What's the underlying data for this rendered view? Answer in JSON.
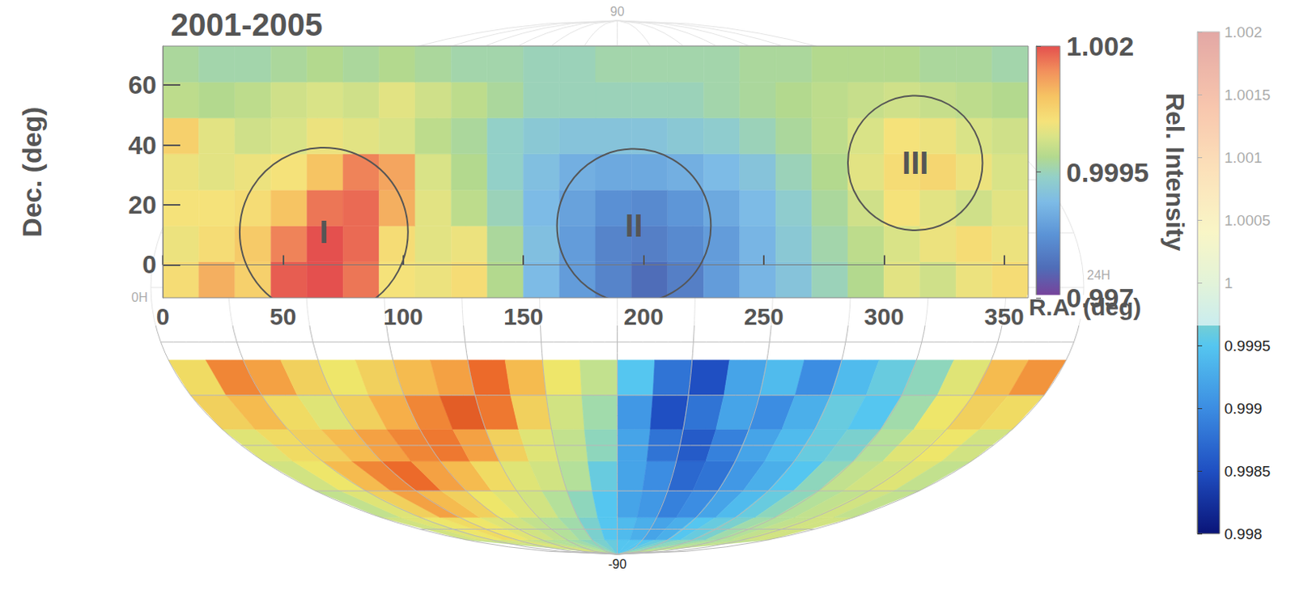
{
  "chart_data": [
    {
      "type": "heatmap",
      "title": "2001-2005",
      "x_label": "R.A. (deg)",
      "y_label": "Dec. (deg)",
      "xlim": [
        0,
        360
      ],
      "xticks": [
        0,
        50,
        100,
        150,
        200,
        250,
        300,
        350
      ],
      "ylim": [
        -11,
        73
      ],
      "yticks": [
        0,
        20,
        40,
        60
      ],
      "grid": false,
      "ra_edges": [
        0,
        15,
        30,
        45,
        60,
        75,
        90,
        105,
        120,
        135,
        150,
        165,
        180,
        195,
        210,
        225,
        240,
        255,
        270,
        285,
        300,
        315,
        330,
        345,
        360
      ],
      "dec_edges": [
        -11,
        1,
        13,
        25,
        37,
        49,
        61,
        73
      ],
      "cells": [
        [
          1.0006,
          1.0012,
          1.0008,
          1.0019,
          1.002,
          1.0017,
          1.0005,
          1.0004,
          1.0006,
          0.9998,
          0.9989,
          0.9984,
          0.998,
          0.9976,
          0.9979,
          0.9984,
          0.9988,
          0.9991,
          0.9995,
          0.9998,
          1.0003,
          1.0001,
          1.0004,
          1.0006
        ],
        [
          1.0004,
          1.0006,
          1.0009,
          1.0016,
          1.002,
          1.0018,
          1.0006,
          1.0003,
          1.0004,
          0.9997,
          0.999,
          0.9984,
          0.998,
          0.9979,
          0.9981,
          0.9984,
          0.9988,
          0.9992,
          0.9996,
          0.9999,
          1.0002,
          1.0004,
          1.0006,
          1.0004
        ],
        [
          1.0005,
          1.0005,
          1.0006,
          1.001,
          1.0017,
          1.0018,
          1.0012,
          1.0003,
          0.9999,
          0.9995,
          0.9989,
          0.9985,
          0.9982,
          0.9981,
          0.9983,
          0.9986,
          0.9989,
          0.9993,
          0.9997,
          1.0001,
          1.0005,
          1.0003,
          1.0001,
          1.0003
        ],
        [
          1.0004,
          1.0003,
          1.0004,
          1.0005,
          1.001,
          1.0016,
          1.0013,
          1.0002,
          0.9998,
          0.9994,
          0.999,
          0.9987,
          0.9986,
          0.9986,
          0.9987,
          0.9989,
          0.9991,
          0.9995,
          0.9998,
          1.0003,
          1.0006,
          1.0007,
          1.0004,
          1.0002
        ],
        [
          1.0008,
          1.0003,
          1.0001,
          1.0002,
          1.0004,
          1.0003,
          1.0002,
          0.9999,
          0.9997,
          0.9994,
          0.9992,
          0.9991,
          0.9991,
          0.9991,
          0.9992,
          0.9993,
          0.9995,
          0.9997,
          0.9999,
          1.0002,
          1.0005,
          1.0004,
          1.0002,
          1.0001
        ],
        [
          0.9999,
          0.9998,
          0.9999,
          1.0001,
          1.0002,
          1.0001,
          1.0003,
          1.0001,
          0.9999,
          0.9997,
          0.9995,
          0.9995,
          0.9995,
          0.9995,
          0.9995,
          0.9996,
          0.9997,
          0.9998,
          0.9999,
          1.0,
          1.0001,
          1.0,
          0.9999,
          0.9998
        ],
        [
          0.9997,
          0.9996,
          0.9996,
          0.9997,
          0.9998,
          0.9997,
          0.9998,
          0.9997,
          0.9996,
          0.9996,
          0.9995,
          0.9995,
          0.9996,
          0.9996,
          0.9996,
          0.9996,
          0.9997,
          0.9997,
          0.9998,
          0.9998,
          0.9998,
          0.9997,
          0.9997,
          0.9996
        ]
      ],
      "colorbar": {
        "label": "Rel. Intensity",
        "range": [
          0.997,
          1.002
        ],
        "ticks": [
          0.997,
          0.9995,
          1.002
        ]
      },
      "regions": [
        {
          "label": "I",
          "ra": 67,
          "dec": 11,
          "radius": 35
        },
        {
          "label": "II",
          "ra": 196,
          "dec": 13,
          "radius": 32
        },
        {
          "label": "III",
          "ra": 313,
          "dec": 34,
          "radius": 28
        }
      ]
    },
    {
      "type": "skymap",
      "grid": true,
      "ra_edges": [
        0,
        15,
        30,
        45,
        60,
        75,
        90,
        105,
        120,
        135,
        150,
        165,
        180,
        195,
        210,
        225,
        240,
        255,
        270,
        285,
        300,
        315,
        330,
        345,
        360
      ],
      "dec_edges": [
        -90,
        -80,
        -70,
        -60,
        -50,
        -40,
        -30,
        -20
      ],
      "cells": [
        [
          1.0001,
          1.0002,
          1.0002,
          1.0003,
          1.0002,
          1.0001,
          1.0,
          1.0,
          0.9999,
          0.9998,
          0.9997,
          0.9996,
          0.9995,
          0.9995,
          0.9995,
          0.9996,
          0.9997,
          0.9998,
          0.9998,
          0.9999,
          1.0,
          1.0,
          1.0001,
          1.0001
        ],
        [
          1.0002,
          1.0003,
          1.0004,
          1.0005,
          1.0004,
          1.0003,
          1.0002,
          1.0001,
          1.0,
          0.9999,
          0.9997,
          0.9995,
          0.9994,
          0.9993,
          0.9992,
          0.9993,
          0.9995,
          0.9996,
          0.9997,
          0.9999,
          1.0,
          1.0001,
          1.0002,
          1.0002
        ],
        [
          1.0001,
          1.0003,
          1.0006,
          1.001,
          1.0008,
          1.0006,
          1.0004,
          1.0003,
          1.0002,
          1.0,
          0.9998,
          0.9995,
          0.9992,
          0.9991,
          0.9989,
          0.999,
          0.9992,
          0.9994,
          0.9996,
          0.9998,
          1.0,
          1.0001,
          1.0002,
          1.0001
        ],
        [
          1.0002,
          1.0004,
          1.0008,
          1.0012,
          1.0014,
          1.001,
          1.0008,
          1.0005,
          1.0003,
          1.0002,
          1.0,
          0.9996,
          0.9992,
          0.999,
          0.9987,
          0.9988,
          0.9991,
          0.9993,
          0.9995,
          0.9998,
          1.0001,
          1.0002,
          1.0003,
          1.0001
        ],
        [
          1.0003,
          1.0005,
          1.0006,
          1.0008,
          1.001,
          1.0012,
          1.0013,
          1.001,
          1.0006,
          1.0003,
          1.0001,
          0.9998,
          0.9992,
          0.9988,
          0.9986,
          0.9989,
          0.9992,
          0.9994,
          0.9996,
          0.9997,
          1.0,
          1.0003,
          1.0004,
          1.0002
        ],
        [
          1.0006,
          1.0008,
          1.0005,
          1.0003,
          1.0006,
          1.0009,
          1.0012,
          1.0015,
          1.0013,
          1.0006,
          1.0002,
          0.9999,
          0.9991,
          0.9985,
          0.9988,
          0.9992,
          0.999,
          0.9993,
          0.9996,
          0.9995,
          0.9999,
          1.0004,
          1.0006,
          1.0005
        ],
        [
          1.0005,
          1.0012,
          1.001,
          1.0006,
          1.0004,
          1.0006,
          1.0008,
          1.001,
          1.0014,
          1.0008,
          1.0004,
          1.0001,
          0.9995,
          0.9988,
          0.9985,
          0.9992,
          0.9994,
          0.999,
          0.9994,
          0.9996,
          0.9998,
          1.0003,
          1.0008,
          1.0011
        ]
      ],
      "meridians": [
        0,
        30,
        60,
        90,
        120,
        150,
        180,
        210,
        240,
        270,
        300,
        330,
        360
      ],
      "parallels": [
        -75,
        -60,
        -45,
        -30,
        -15,
        0,
        15,
        30,
        45,
        60,
        75
      ],
      "labels": [
        {
          "text": "90",
          "ra": 180,
          "dec": 90
        },
        {
          "text": "-90",
          "ra": 180,
          "dec": -90
        },
        {
          "text": "0H",
          "ra": 0,
          "dec": 0
        },
        {
          "text": "24H",
          "ra": 360,
          "dec": 0
        }
      ],
      "colorbar": {
        "range": [
          0.998,
          1.002
        ],
        "ticks": [
          0.998,
          0.9985,
          0.999,
          0.9995,
          1,
          1.0005,
          1.001,
          1.0015,
          1.002
        ]
      }
    }
  ]
}
